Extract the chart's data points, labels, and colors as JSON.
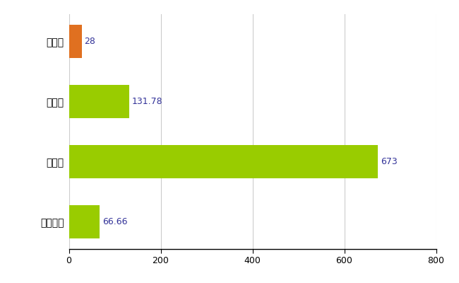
{
  "categories": [
    "全国平均",
    "県最大",
    "県平均",
    "島本町"
  ],
  "values": [
    66.66,
    673,
    131.78,
    28
  ],
  "bar_colors": [
    "#99cc00",
    "#99cc00",
    "#99cc00",
    "#e07020"
  ],
  "value_labels": [
    "66.66",
    "673",
    "131.78",
    "28"
  ],
  "value_label_color": "#333399",
  "xlim": [
    0,
    800
  ],
  "xticks": [
    0,
    200,
    400,
    600,
    800
  ],
  "grid_color": "#cccccc",
  "background_color": "#ffffff",
  "bar_height": 0.55,
  "figsize": [
    6.5,
    4.0
  ],
  "dpi": 100
}
